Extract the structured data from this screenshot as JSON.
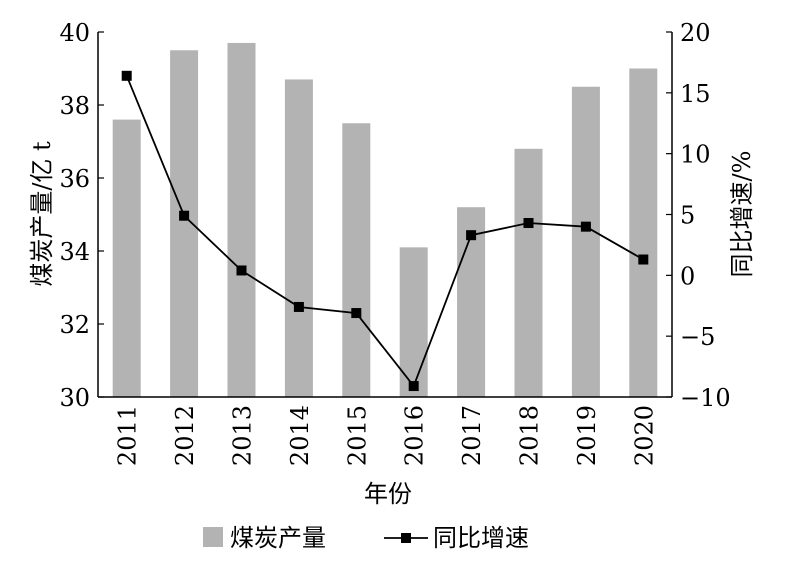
{
  "chart_data": {
    "type": "bar",
    "categories": [
      "2011",
      "2012",
      "2013",
      "2014",
      "2015",
      "2016",
      "2017",
      "2018",
      "2019",
      "2020"
    ],
    "series": [
      {
        "name": "煤炭产量",
        "type": "bar",
        "axis": "left",
        "color": "#b3b3b3",
        "values": [
          37.6,
          39.5,
          39.7,
          38.7,
          37.5,
          34.1,
          35.2,
          36.8,
          38.5,
          39.0
        ]
      },
      {
        "name": "同比增速",
        "type": "line",
        "axis": "right",
        "color": "#000000",
        "values": [
          16.4,
          4.9,
          0.4,
          -2.6,
          -3.1,
          -9.1,
          3.3,
          4.3,
          4.0,
          1.3
        ]
      }
    ],
    "xlabel": "年份",
    "ylabel": "煤炭产量/亿 t",
    "ylabel_right": "同比增速/%",
    "ylim": [
      30,
      40
    ],
    "ylim_right": [
      -10,
      20
    ],
    "yticks": [
      "30",
      "32",
      "34",
      "36",
      "38",
      "40"
    ],
    "yticks_right": [
      "−10",
      "−5",
      "0",
      "5",
      "10",
      "15",
      "20"
    ],
    "legend_position": "bottom",
    "grid": false
  }
}
